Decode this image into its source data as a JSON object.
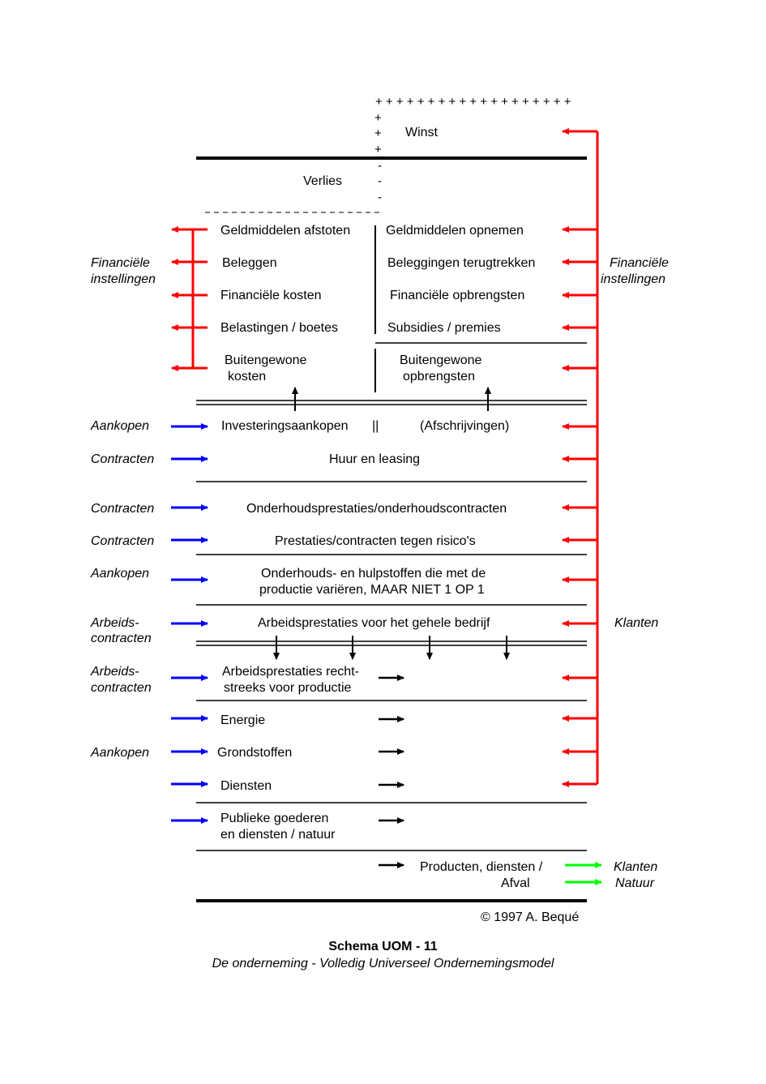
{
  "colors": {
    "inflow": "#0000ff",
    "outflow": "#ff0000",
    "output": "#00ff00",
    "line": "#000000"
  },
  "top": {
    "plus_row": "+ + + + + + + + + + + + + + + + + + +",
    "winst": "Winst",
    "verlies": "Verlies"
  },
  "side_labels": {
    "fin_left_1": "Financiële",
    "fin_left_2": "instellingen",
    "fin_right_1": "Financiële",
    "fin_right_2": "instellingen",
    "aankopen_1": "Aankopen",
    "contracten_1": "Contracten",
    "contracten_2": "Contracten",
    "contracten_3": "Contracten",
    "aankopen_2": "Aankopen",
    "arbeid_1a": "Arbeids-",
    "arbeid_1b": "contracten",
    "klanten_1": "Klanten",
    "arbeid_2a": "Arbeids-",
    "arbeid_2b": "contracten",
    "aankopen_3": "Aankopen",
    "klanten_2": "Klanten",
    "natuur": "Natuur"
  },
  "financial_left": [
    "Geldmiddelen afstoten",
    "Beleggen",
    "Financiële kosten",
    "Belastingen / boetes"
  ],
  "financial_right": [
    "Geldmiddelen opnemen",
    "Beleggingen terugtrekken",
    "Financiële opbrengsten",
    "Subsidies / premies"
  ],
  "extraordinary": {
    "left_1": "Buitengewone",
    "left_2": "kosten",
    "right_1": "Buitengewone",
    "right_2": "opbrengsten"
  },
  "rows": {
    "investering": "Investeringsaankopen",
    "separator": "||",
    "afschrijving": "(Afschrijvingen)",
    "huur": "Huur en leasing",
    "onderhoud": "Onderhoudsprestaties/onderhoudscontracten",
    "prestaties": "Prestaties/contracten tegen risico's",
    "hulpstoffen_1": "Onderhouds- en hulpstoffen die met de",
    "hulpstoffen_2": "productie variëren, MAAR NIET 1 OP 1",
    "arbeid_bedrijf": "Arbeidsprestaties voor het gehele bedrijf",
    "arbeid_direct_1": "Arbeidsprestaties recht-",
    "arbeid_direct_2": "streeks voor productie",
    "energie": "Energie",
    "grondstoffen": "Grondstoffen",
    "diensten": "Diensten",
    "publiek_1": "Publieke goederen",
    "publiek_2": "en diensten / natuur",
    "output_1": "Producten, diensten /",
    "output_2": "Afval"
  },
  "copyright": "© 1997 A. Bequé",
  "caption": {
    "title": "Schema UOM - 11",
    "subtitle": "De onderneming - Volledig Universeel Ondernemingsmodel"
  }
}
